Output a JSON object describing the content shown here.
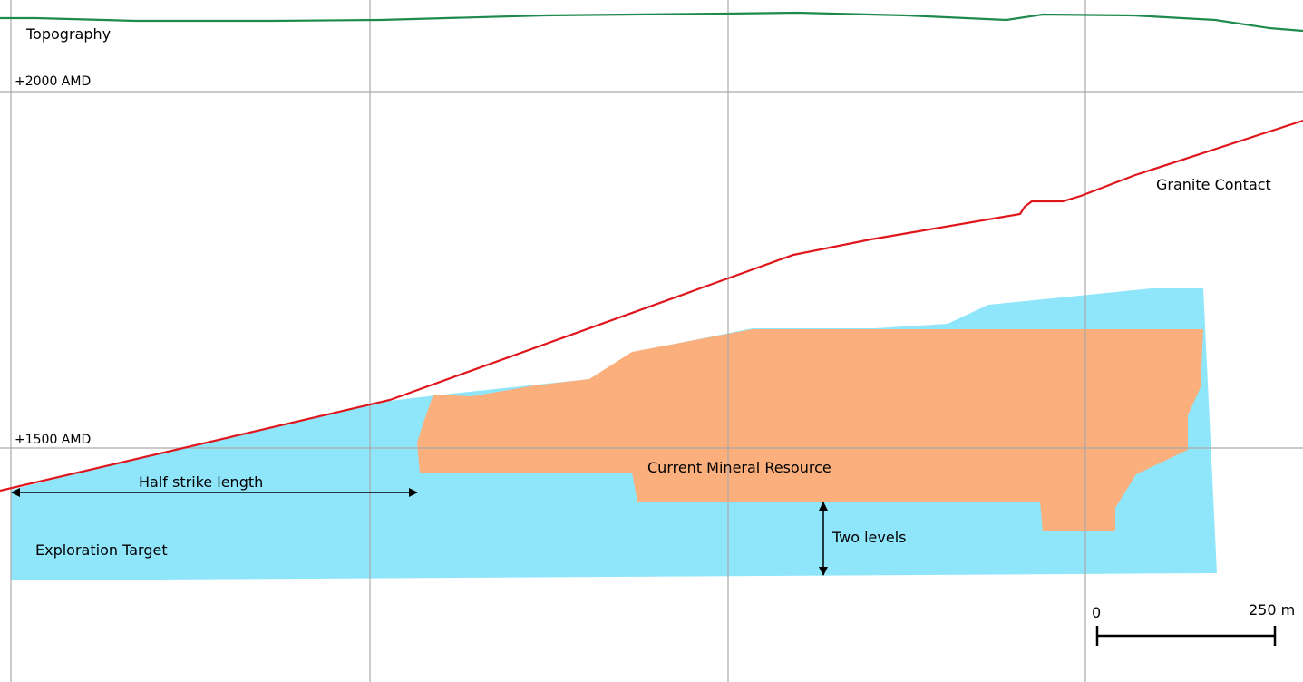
{
  "colors": {
    "topography": "#1e8a4c",
    "granite_contact": "#e0161d",
    "exploration_target": "#8fe6fb",
    "mineral_resource": "#fbaf7c",
    "grid": "#aaaaaa"
  },
  "labels": {
    "topography": "Topography",
    "elevation_2000": "+2000 AMD",
    "elevation_1500": "+1500 AMD",
    "granite_contact": "Granite Contact",
    "current_mineral_resource": "Current Mineral Resource",
    "half_strike_length": "Half strike length",
    "exploration_target": "Exploration Target",
    "two_levels": "Two levels"
  },
  "scale_bar": {
    "start_label": "0",
    "end_label": "250 m"
  }
}
